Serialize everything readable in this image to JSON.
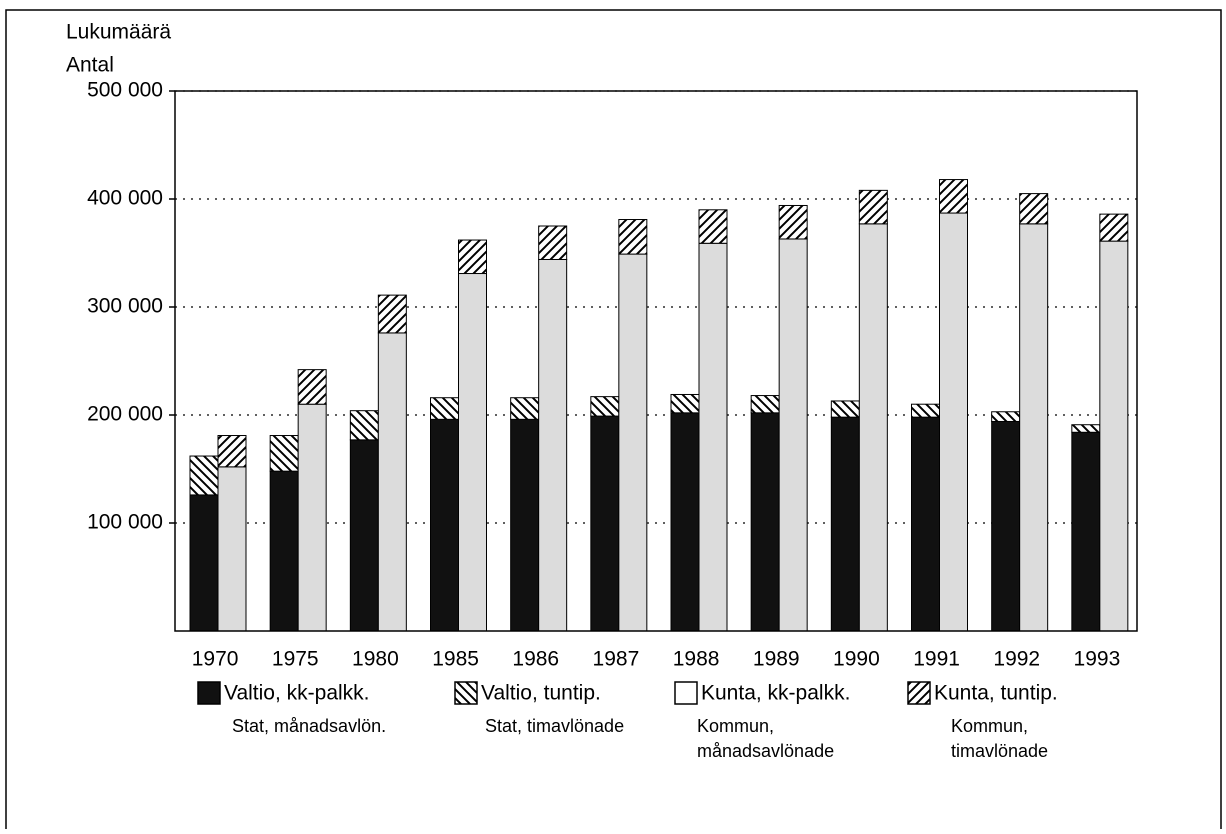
{
  "chart_data": {
    "type": "bar",
    "ylabel": [
      "Lukumäärä",
      "Antal"
    ],
    "categories": [
      "1970",
      "1975",
      "1980",
      "1985",
      "1986",
      "1987",
      "1988",
      "1989",
      "1990",
      "1991",
      "1992",
      "1993"
    ],
    "series": [
      {
        "name": "Valtio, kk-palkk.",
        "subname": [
          "Stat, månadsavlön."
        ],
        "color": "#111111",
        "pattern": "solid",
        "stack": 0,
        "values": [
          126000,
          148000,
          177000,
          196000,
          196000,
          199000,
          202000,
          202000,
          198000,
          198000,
          194000,
          184000
        ]
      },
      {
        "name": "Valtio, tuntip.",
        "subname": [
          "Stat, timavlönade"
        ],
        "color": "#000000",
        "pattern": "hatch-back",
        "stack": 0,
        "values": [
          36000,
          33000,
          27000,
          20000,
          20000,
          18000,
          17000,
          16000,
          15000,
          12000,
          9000,
          7000
        ]
      },
      {
        "name": "Kunta, kk-palkk.",
        "subname": [
          "Kommun,",
          "månadsavlönade"
        ],
        "color": "#dcdcdc",
        "pattern": "solid",
        "stack": 1,
        "values": [
          152000,
          210000,
          276000,
          331000,
          344000,
          349000,
          359000,
          363000,
          377000,
          387000,
          377000,
          361000
        ]
      },
      {
        "name": "Kunta, tuntip.",
        "subname": [
          "Kommun,",
          "timavlönade"
        ],
        "color": "#000000",
        "pattern": "hatch-fwd",
        "stack": 1,
        "values": [
          29000,
          32000,
          35000,
          31000,
          31000,
          32000,
          31000,
          31000,
          31000,
          31000,
          28000,
          25000
        ]
      }
    ],
    "ylim": [
      0,
      500000
    ],
    "yticks": [
      {
        "value": 100000,
        "label": "100 000"
      },
      {
        "value": 200000,
        "label": "200 000"
      },
      {
        "value": 300000,
        "label": "300 000"
      },
      {
        "value": 400000,
        "label": "400 000"
      },
      {
        "value": 500000,
        "label": "500 000"
      }
    ],
    "grid": true
  }
}
